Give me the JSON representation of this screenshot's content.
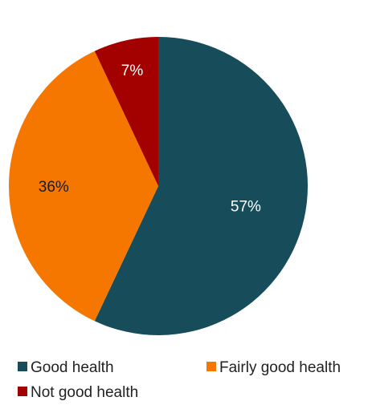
{
  "chart_data": {
    "type": "pie",
    "title": "",
    "slices": [
      {
        "label": "Good health",
        "value": 57,
        "display": "57%",
        "color": "#174D5A",
        "label_color": "#FFFFFF"
      },
      {
        "label": "Fairly good health",
        "value": 36,
        "display": "36%",
        "color": "#F67700",
        "label_color": "#1A1A1A"
      },
      {
        "label": "Not good health",
        "value": 7,
        "display": "7%",
        "color": "#A30000",
        "label_color": "#FFFFFF"
      }
    ],
    "start_angle_deg": 0,
    "direction": "clockwise",
    "legend_position": "bottom"
  }
}
